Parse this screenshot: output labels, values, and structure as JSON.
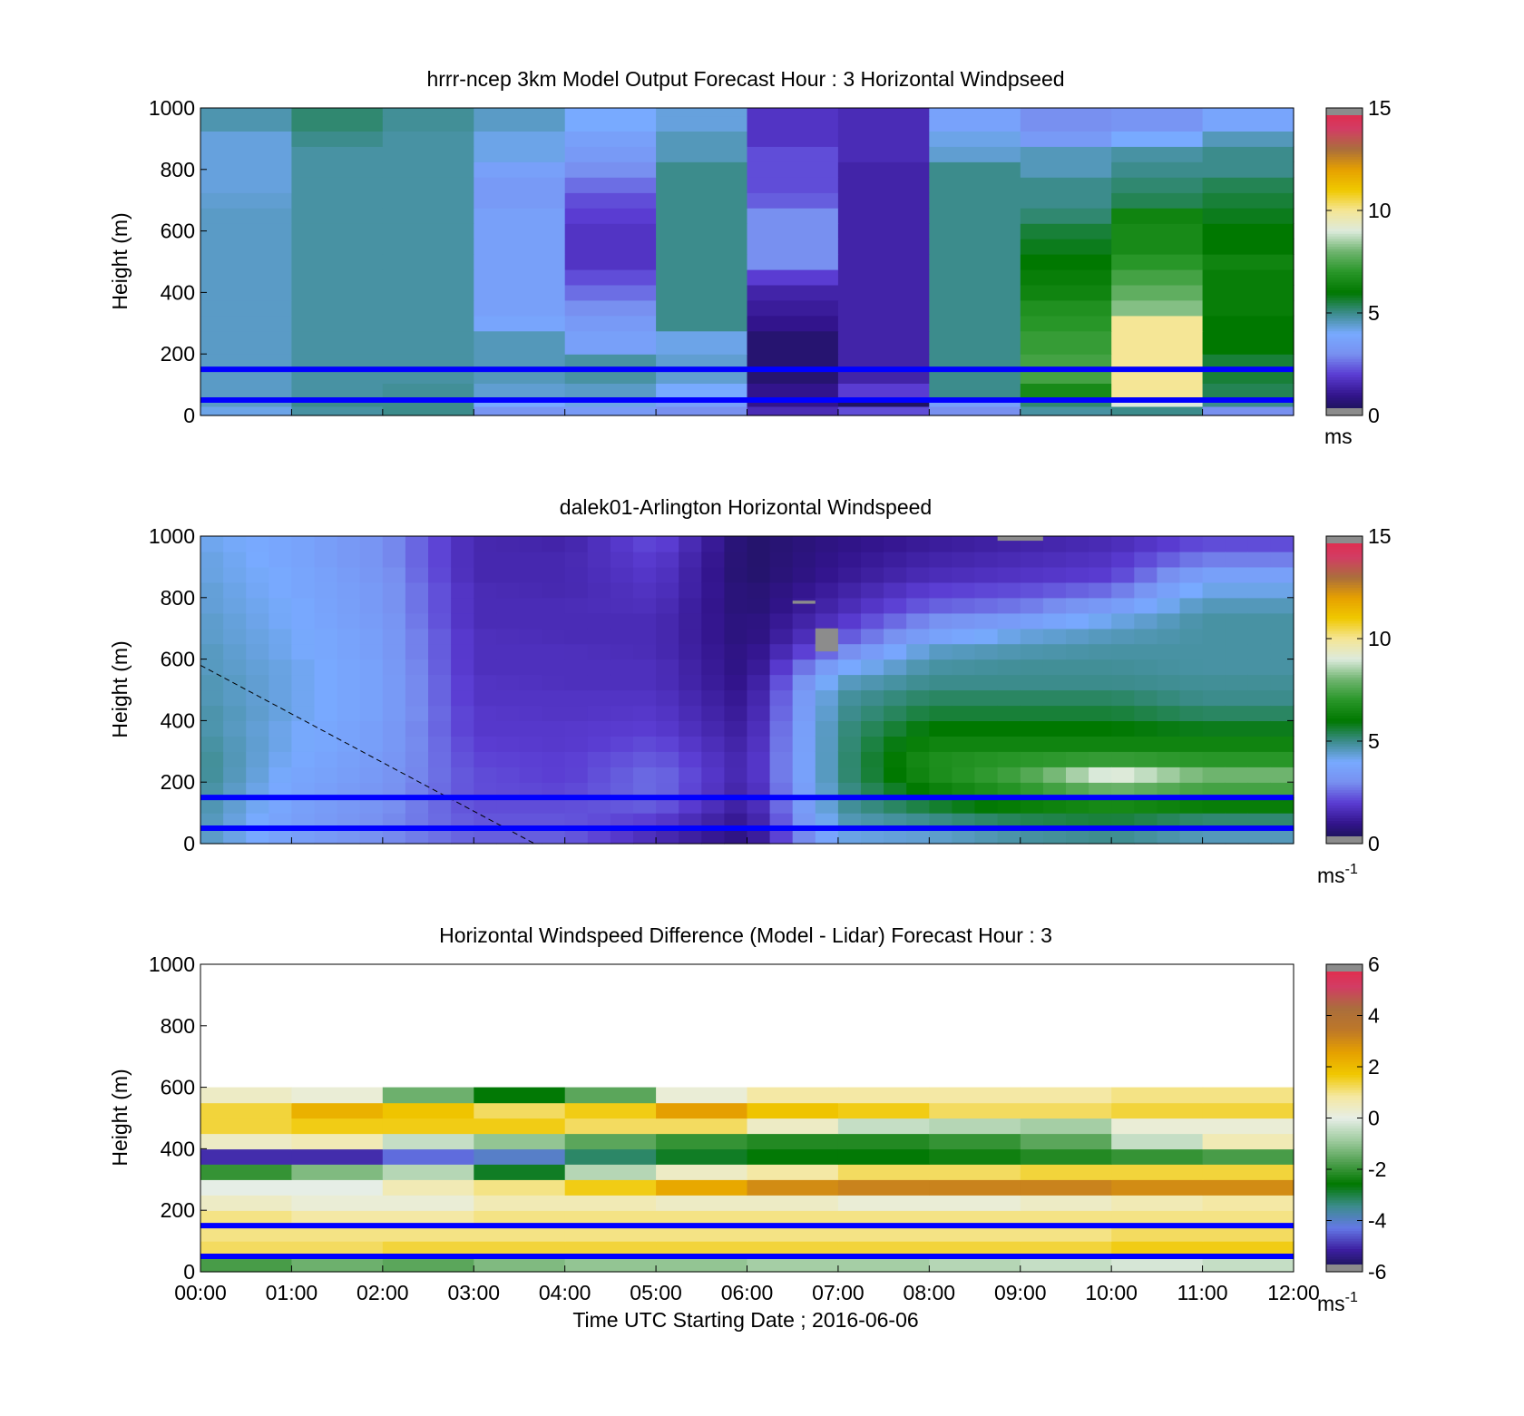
{
  "figure": {
    "xlabel": "Time UTC  Starting Date ; 2016-06-06",
    "time_ticks": [
      "00:00",
      "01:00",
      "02:00",
      "03:00",
      "04:00",
      "05:00",
      "06:00",
      "07:00",
      "08:00",
      "09:00",
      "10:00",
      "11:00",
      "12:00"
    ],
    "height_ticks": [
      "0",
      "200",
      "400",
      "600",
      "800",
      "1000"
    ],
    "overlay_line_color": "#0000ff",
    "overlay_lines_height_m": [
      150,
      50
    ]
  },
  "colormaps": {
    "speed": [
      "#141446",
      "#32148c",
      "#5a3cd2",
      "#7890f0",
      "#78aaff",
      "#3c8c8c",
      "#007800",
      "#289628",
      "#6eb46e",
      "#dceadc",
      "#f5e696",
      "#f0c800",
      "#e6a000",
      "#aa6e3c",
      "#d23c64",
      "#e62846"
    ],
    "difference": [
      "#141446",
      "#3c1ea0",
      "#6478e6",
      "#3c8c8c",
      "#007800",
      "#50a050",
      "#a0cca0",
      "#e6eee6",
      "#f5e8a0",
      "#f0c800",
      "#e6a000",
      "#be7828",
      "#aa6e3c",
      "#d23c64",
      "#e62846"
    ]
  },
  "chart_data": [
    {
      "type": "heatmap",
      "title": "hrrr-ncep 3km Model Output   Forecast Hour : 3 Horizontal Windpseed",
      "ylabel": "Height (m)",
      "xlim": [
        "00:00",
        "12:00"
      ],
      "ylim": [
        0,
        1000
      ],
      "colormap": "speed",
      "colorbar": {
        "label": "ms",
        "ticks": [
          "0",
          "5",
          "10",
          "15"
        ],
        "range": [
          0,
          15
        ]
      },
      "grid": false,
      "x": [
        "00:00",
        "01:00",
        "02:00",
        "03:00",
        "04:00",
        "05:00",
        "06:00",
        "07:00",
        "08:00",
        "09:00",
        "10:00",
        "11:00"
      ],
      "y_levels_m": [
        20,
        40,
        60,
        150,
        250,
        300,
        350,
        400,
        450,
        500,
        550,
        600,
        650,
        700,
        750,
        800,
        850,
        900,
        950,
        1000
      ],
      "values_ms": [
        [
          4.2,
          4.8,
          5.0,
          3.2,
          3.4,
          3.0,
          1.6,
          2.2,
          3.0,
          4.8,
          5.0,
          3.0
        ],
        [
          4.5,
          5.0,
          5.0,
          4.0,
          4.2,
          3.6,
          1.0,
          0.4,
          3.6,
          5.2,
          9.0,
          5.0
        ],
        [
          4.5,
          4.8,
          4.9,
          4.4,
          4.5,
          4.0,
          1.0,
          2.0,
          5.0,
          6.6,
          10.0,
          5.4
        ],
        [
          4.5,
          4.8,
          4.8,
          4.6,
          4.8,
          4.4,
          0.6,
          1.4,
          5.0,
          7.4,
          10.0,
          5.6
        ],
        [
          4.5,
          4.8,
          4.8,
          4.6,
          3.6,
          4.2,
          0.6,
          1.4,
          5.0,
          7.2,
          10.0,
          6.0
        ],
        [
          4.5,
          4.8,
          4.8,
          3.8,
          3.4,
          5.0,
          1.0,
          1.4,
          5.0,
          7.0,
          10.0,
          6.0
        ],
        [
          4.5,
          4.8,
          4.8,
          3.6,
          3.0,
          5.0,
          1.2,
          1.4,
          5.0,
          6.8,
          8.2,
          6.2
        ],
        [
          4.5,
          4.8,
          4.8,
          3.6,
          2.6,
          5.0,
          1.4,
          1.4,
          5.0,
          6.4,
          7.8,
          6.2
        ],
        [
          4.5,
          4.8,
          4.8,
          3.6,
          2.2,
          5.0,
          2.0,
          1.4,
          5.0,
          6.2,
          7.4,
          6.2
        ],
        [
          4.5,
          4.8,
          4.8,
          3.6,
          1.8,
          5.0,
          3.0,
          1.4,
          5.0,
          6.0,
          7.0,
          6.4
        ],
        [
          4.5,
          4.8,
          4.8,
          3.6,
          1.8,
          5.0,
          3.0,
          1.4,
          5.0,
          5.8,
          6.6,
          6.0
        ],
        [
          4.5,
          4.8,
          4.8,
          3.6,
          1.8,
          5.0,
          3.0,
          1.4,
          5.0,
          5.6,
          6.6,
          6.0
        ],
        [
          4.5,
          4.8,
          4.8,
          3.6,
          2.0,
          5.0,
          3.0,
          1.4,
          5.0,
          5.2,
          6.4,
          5.8
        ],
        [
          4.4,
          4.8,
          4.8,
          3.4,
          2.2,
          5.0,
          2.4,
          1.4,
          5.0,
          5.0,
          5.4,
          5.6
        ],
        [
          4.3,
          4.8,
          4.8,
          3.4,
          2.6,
          5.0,
          2.2,
          1.4,
          5.0,
          5.0,
          5.2,
          5.4
        ],
        [
          4.3,
          4.8,
          4.8,
          3.6,
          3.0,
          5.0,
          2.2,
          1.4,
          5.0,
          4.6,
          5.0,
          5.0
        ],
        [
          4.3,
          4.8,
          4.8,
          4.2,
          3.4,
          4.6,
          2.2,
          1.6,
          4.4,
          4.6,
          4.8,
          5.0
        ],
        [
          4.3,
          5.0,
          4.8,
          4.2,
          3.6,
          4.6,
          1.8,
          1.6,
          4.2,
          3.4,
          4.0,
          4.6
        ],
        [
          4.7,
          5.2,
          4.9,
          4.5,
          4.0,
          4.3,
          1.8,
          1.6,
          3.7,
          3.0,
          3.2,
          3.8
        ],
        [
          4.7,
          5.2,
          4.9,
          4.5,
          4.0,
          4.3,
          1.8,
          1.6,
          3.7,
          3.0,
          3.2,
          3.8
        ]
      ]
    },
    {
      "type": "heatmap",
      "title": "dalek01-Arlington  Horizontal Windspeed",
      "ylabel": "Height (m)",
      "xlim": [
        "00:00",
        "12:00"
      ],
      "ylim": [
        0,
        1000
      ],
      "colormap": "speed",
      "colorbar": {
        "label": "ms",
        "label_superscript": "-1",
        "ticks": [
          "0",
          "5",
          "10",
          "15"
        ],
        "range": [
          0,
          15
        ]
      },
      "grid": false,
      "x_start": "00:00",
      "x_step_minutes": 15,
      "columns": 48,
      "y_levels_m": [
        25,
        75,
        125,
        175,
        225,
        275,
        325,
        375,
        425,
        475,
        525,
        575,
        625,
        675,
        725,
        775,
        825,
        875,
        925,
        975
      ],
      "profiles_ms": [
        {
          "time": "00:00",
          "values": [
            4.6,
            4.7,
            4.8,
            4.9,
            5.0,
            5.0,
            4.9,
            4.8,
            4.8,
            4.7,
            4.7,
            4.6,
            4.6,
            4.5,
            4.5,
            4.4,
            4.4,
            4.3,
            4.3,
            4.2
          ]
        },
        {
          "time": "01:00",
          "values": [
            3.6,
            3.6,
            3.7,
            3.8,
            3.9,
            4.0,
            4.1,
            4.1,
            4.2,
            4.2,
            4.2,
            4.2,
            4.1,
            4.1,
            4.0,
            4.0,
            3.9,
            3.9,
            3.8,
            3.8
          ]
        },
        {
          "time": "02:00",
          "values": [
            3.0,
            3.0,
            3.1,
            3.2,
            3.3,
            3.4,
            3.5,
            3.5,
            3.6,
            3.6,
            3.6,
            3.6,
            3.5,
            3.5,
            3.4,
            3.3,
            3.3,
            3.2,
            3.1,
            3.1
          ]
        },
        {
          "time": "03:00",
          "values": [
            2.4,
            2.3,
            2.2,
            2.2,
            2.2,
            2.1,
            2.0,
            1.9,
            1.9,
            1.8,
            1.8,
            1.7,
            1.7,
            1.7,
            1.6,
            1.6,
            1.6,
            1.5,
            1.5,
            1.5
          ]
        },
        {
          "time": "04:00",
          "values": [
            2.4,
            2.3,
            2.2,
            2.1,
            2.0,
            2.0,
            1.9,
            1.9,
            1.8,
            1.8,
            1.7,
            1.7,
            1.7,
            1.6,
            1.6,
            1.6,
            1.5,
            1.5,
            1.5,
            1.4
          ]
        },
        {
          "time": "05:00",
          "values": [
            1.6,
            2.0,
            2.4,
            2.6,
            2.6,
            2.4,
            2.2,
            2.0,
            1.9,
            1.8,
            1.7,
            1.7,
            1.6,
            1.6,
            1.6,
            1.7,
            1.8,
            1.9,
            2.0,
            2.2
          ]
        },
        {
          "time": "06:00",
          "values": [
            0.8,
            1.0,
            1.2,
            1.3,
            1.4,
            1.4,
            1.3,
            1.2,
            1.1,
            1.0,
            0.9,
            0.8,
            0.8,
            0.7,
            0.7,
            0.6,
            0.6,
            0.5,
            0.5,
            0.5
          ]
        },
        {
          "time": "07:00",
          "values": [
            4.2,
            4.6,
            4.8,
            4.9,
            5.0,
            5.0,
            5.0,
            5.0,
            4.9,
            4.8,
            4.5,
            3.8,
            2.8,
            2.2,
            1.8,
            1.5,
            1.3,
            1.1,
            1.0,
            0.9
          ]
        },
        {
          "time": "08:00",
          "values": [
            4.4,
            5.0,
            5.6,
            6.2,
            6.6,
            6.7,
            6.4,
            6.0,
            5.6,
            5.3,
            5.0,
            4.8,
            4.5,
            3.6,
            3.0,
            2.4,
            2.0,
            1.6,
            1.4,
            1.2
          ]
        },
        {
          "time": "09:00",
          "values": [
            4.8,
            5.4,
            6.2,
            7.0,
            7.4,
            7.0,
            6.4,
            6.0,
            5.6,
            5.3,
            5.0,
            4.9,
            4.7,
            4.3,
            3.5,
            2.7,
            2.2,
            1.8,
            1.6,
            1.4
          ]
        },
        {
          "time": "10:00",
          "values": [
            5.0,
            5.6,
            6.6,
            8.0,
            9.2,
            7.2,
            6.4,
            6.0,
            5.6,
            5.3,
            5.0,
            4.9,
            4.8,
            4.6,
            4.2,
            3.4,
            2.6,
            2.0,
            1.8,
            1.6
          ]
        },
        {
          "time": "11:00",
          "values": [
            4.6,
            5.2,
            6.2,
            7.4,
            8.0,
            7.0,
            6.4,
            5.8,
            5.3,
            5.0,
            4.9,
            4.8,
            4.8,
            4.8,
            4.8,
            4.6,
            4.2,
            3.6,
            2.8,
            2.2
          ]
        },
        {
          "time": "12:00",
          "values": [
            4.6,
            5.2,
            6.2,
            7.4,
            8.0,
            7.0,
            6.4,
            5.8,
            5.3,
            5.0,
            4.9,
            4.8,
            4.8,
            4.8,
            4.8,
            4.6,
            4.2,
            3.6,
            2.8,
            2.2
          ]
        }
      ],
      "missing_data": [
        {
          "time_start": "06:45",
          "time_end": "07:00",
          "height_m": [
            625,
            700
          ]
        },
        {
          "time_start": "06:30",
          "time_end": "06:45",
          "height_m": [
            780,
            790
          ]
        },
        {
          "time_start": "08:45",
          "time_end": "09:15",
          "height_m": [
            985,
            1000
          ]
        }
      ],
      "annotation_line": {
        "style": "dashed",
        "from": {
          "time": "00:00",
          "height_m": 580
        },
        "to": {
          "time": "03:40",
          "height_m": 0
        }
      }
    },
    {
      "type": "heatmap",
      "title": "Horizontal Windspeed Difference (Model - Lidar) Forecast Hour : 3",
      "ylabel": "Height (m)",
      "xlim": [
        "00:00",
        "12:00"
      ],
      "ylim": [
        0,
        1000
      ],
      "colormap": "difference",
      "colorbar": {
        "label": "ms",
        "label_superscript": "-1",
        "ticks": [
          "-6",
          "-4",
          "-2",
          "0",
          "2",
          "4",
          "6"
        ],
        "range": [
          -6,
          6
        ]
      },
      "grid": false,
      "x": [
        "00:00",
        "01:00",
        "02:00",
        "03:00",
        "04:00",
        "05:00",
        "06:00",
        "07:00",
        "08:00",
        "09:00",
        "10:00",
        "11:00"
      ],
      "y_levels_m": [
        25,
        75,
        125,
        175,
        225,
        275,
        325,
        375,
        425,
        475,
        525,
        575,
        625,
        675,
        725,
        775,
        825,
        875,
        925,
        975
      ],
      "values_ms": [
        [
          -1.8,
          -1.4,
          -1.6,
          -1.2,
          -1.0,
          -1.0,
          -0.8,
          -0.8,
          -0.6,
          -0.4,
          -0.2,
          -0.4,
          -0.6,
          -0.8,
          -1.0,
          -0.8,
          0.0,
          0.8,
          1.2,
          1.0
        ],
        [
          1.2,
          1.2,
          1.4,
          1.4,
          1.4,
          1.4,
          1.4,
          1.4,
          1.4,
          1.4,
          1.6,
          1.6,
          1.6,
          1.6,
          1.6,
          1.8,
          2.0,
          2.0,
          2.0,
          2.2
        ],
        [
          1.0,
          1.0,
          1.0,
          1.0,
          1.0,
          1.0,
          1.0,
          1.0,
          1.0,
          1.0,
          1.2,
          1.2,
          1.4,
          1.4,
          1.2,
          1.2,
          1.4,
          1.6,
          1.6,
          1.6
        ],
        [
          1.0,
          0.8,
          0.8,
          1.0,
          1.0,
          1.0,
          1.0,
          1.0,
          1.0,
          1.0,
          1.0,
          1.0,
          1.0,
          1.2,
          1.2,
          1.6,
          2.0,
          2.4,
          2.4,
          2.6
        ],
        [
          0.4,
          0.2,
          0.2,
          0.6,
          0.6,
          0.4,
          0.4,
          0.2,
          0.2,
          0.4,
          0.6,
          0.8,
          1.0,
          1.0,
          1.2,
          1.4,
          1.6,
          1.6,
          1.6,
          1.4
        ],
        [
          0.0,
          0.0,
          0.6,
          1.0,
          1.6,
          2.4,
          3.0,
          3.2,
          3.2,
          3.2,
          3.0,
          3.0,
          2.8,
          2.6,
          2.4,
          2.4,
          2.2,
          1.8,
          1.2,
          0.4
        ],
        [
          -2.0,
          -1.2,
          -0.6,
          -2.8,
          -0.6,
          0.4,
          0.8,
          1.2,
          1.2,
          1.4,
          1.4,
          1.4,
          1.4,
          1.6,
          1.6,
          1.4,
          1.2,
          1.0,
          0.2,
          0.0
        ],
        [
          -5.0,
          -5.0,
          -4.4,
          -4.0,
          -3.2,
          -2.8,
          -2.6,
          -2.6,
          -2.4,
          -2.2,
          -2.0,
          -1.8,
          -1.2,
          -0.8,
          -0.6,
          -0.2,
          0.0,
          0.0,
          0.0,
          -0.4
        ],
        [
          0.4,
          0.6,
          -0.4,
          -1.0,
          -1.6,
          -2.0,
          -2.2,
          -2.2,
          -2.0,
          -1.6,
          -0.4,
          0.6,
          1.0,
          1.0,
          1.0,
          1.2,
          1.4,
          1.6,
          1.8,
          2.2
        ],
        [
          1.4,
          1.6,
          1.6,
          1.6,
          1.2,
          1.2,
          0.4,
          -0.4,
          -0.6,
          -0.8,
          0.2,
          0.2,
          0.6,
          0.8,
          0.8,
          1.0,
          1.0,
          1.0,
          1.2,
          1.4
        ],
        [
          1.4,
          2.2,
          1.8,
          1.2,
          1.6,
          2.6,
          1.8,
          1.6,
          1.2,
          1.2,
          1.4,
          1.4,
          1.4,
          1.2,
          1.2,
          1.4,
          1.2,
          1.2,
          1.0,
          1.0
        ],
        [
          0.4,
          0.2,
          -1.4,
          -2.6,
          -1.6,
          0.2,
          0.8,
          0.8,
          0.8,
          0.8,
          1.0,
          1.0,
          0.8,
          0.6,
          0.6,
          0.4,
          0.2,
          0.2,
          0.4,
          0.2
        ]
      ]
    }
  ]
}
